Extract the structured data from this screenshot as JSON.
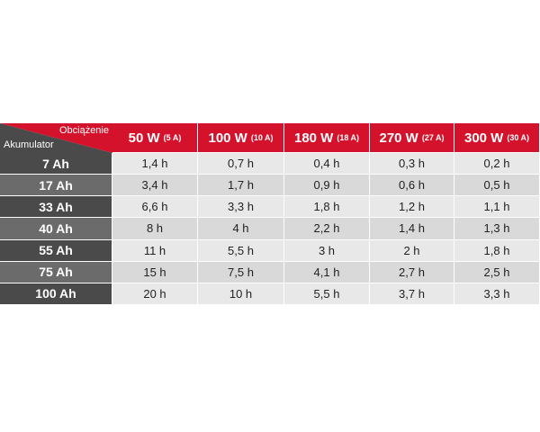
{
  "table": {
    "corner": {
      "top": "Obciążenie",
      "bottom": "Akumulator"
    },
    "columns": [
      {
        "power": "50 W",
        "current": "(5 A)"
      },
      {
        "power": "100 W",
        "current": "(10 A)"
      },
      {
        "power": "180 W",
        "current": "(18 A)"
      },
      {
        "power": "270 W",
        "current": "(27 A)"
      },
      {
        "power": "300 W",
        "current": "(30 A)"
      }
    ],
    "rows": [
      {
        "label": "7 Ah",
        "cells": [
          "1,4 h",
          "0,7 h",
          "0,4 h",
          "0,3 h",
          "0,2 h"
        ]
      },
      {
        "label": "17 Ah",
        "cells": [
          "3,4 h",
          "1,7 h",
          "0,9 h",
          "0,6 h",
          "0,5 h"
        ]
      },
      {
        "label": "33 Ah",
        "cells": [
          "6,6 h",
          "3,3 h",
          "1,8 h",
          "1,2 h",
          "1,1 h"
        ]
      },
      {
        "label": "40 Ah",
        "cells": [
          "8 h",
          "4 h",
          "2,2 h",
          "1,4 h",
          "1,3 h"
        ]
      },
      {
        "label": "55 Ah",
        "cells": [
          "11 h",
          "5,5 h",
          "3 h",
          "2 h",
          "1,8 h"
        ]
      },
      {
        "label": "75 Ah",
        "cells": [
          "15 h",
          "7,5 h",
          "4,1 h",
          "2,7 h",
          "2,5 h"
        ]
      },
      {
        "label": "100 Ah",
        "cells": [
          "20 h",
          "10 h",
          "5,5 h",
          "3,7 h",
          "3,3 h"
        ]
      }
    ]
  }
}
